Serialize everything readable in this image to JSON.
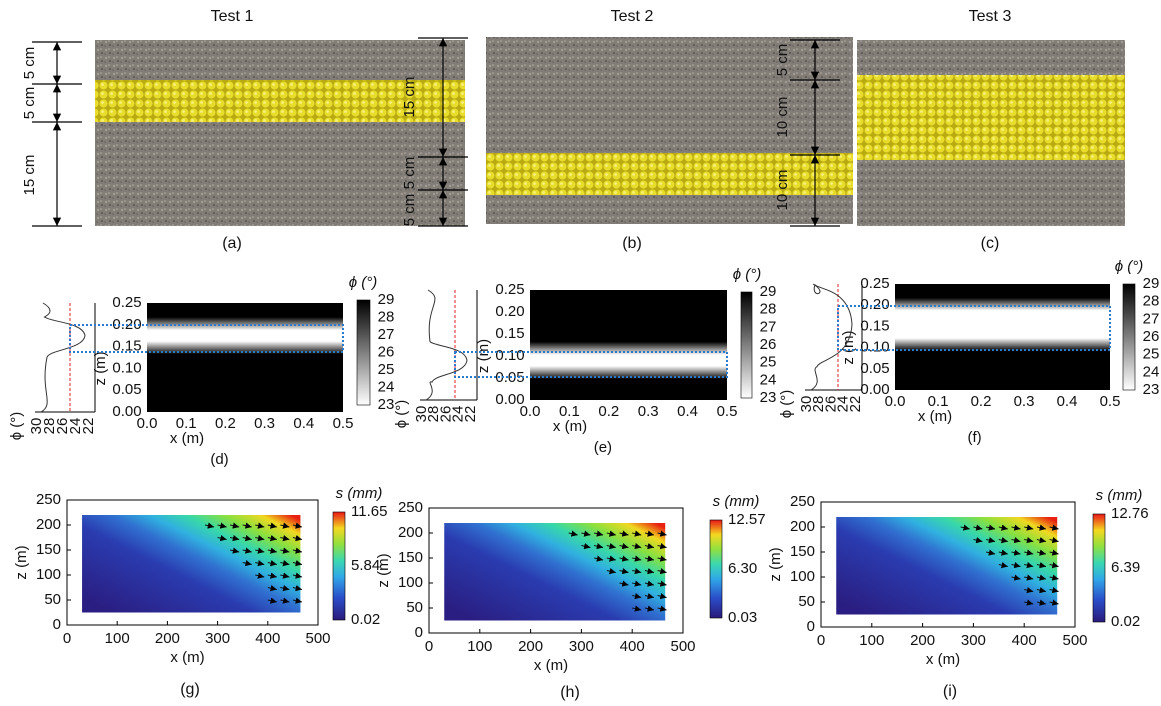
{
  "tests": [
    {
      "title": "Test 1",
      "dims": [
        "5 cm",
        "5 cm",
        "15 cm"
      ],
      "label": "(a)"
    },
    {
      "title": "Test 2",
      "dims": [
        "15 cm",
        "5 cm",
        "5 cm"
      ],
      "label": "(b)"
    },
    {
      "title": "Test 3",
      "dims": [
        "5 cm",
        "10 cm",
        "10 cm"
      ],
      "label": "(c)"
    }
  ],
  "phi_panels": [
    {
      "label": "(d)",
      "colorbar_title": "ϕ (°)",
      "colorbar_ticks": [
        "29",
        "28",
        "27",
        "26",
        "25",
        "24",
        "23"
      ],
      "z_label": "z (m)",
      "x_label": "x (m)",
      "z_ticks": [
        "0.25",
        "0.20",
        "0.15",
        "0.10",
        "0.05",
        "0.00"
      ],
      "x_ticks": [
        "0.0",
        "0.1",
        "0.2",
        "0.3",
        "0.4",
        "0.5"
      ],
      "profile_label": "ϕ (°)",
      "profile_ticks": [
        "30",
        "28",
        "26",
        "24",
        "22"
      ]
    },
    {
      "label": "(e)",
      "colorbar_title": "ϕ (°)",
      "colorbar_ticks": [
        "29",
        "28",
        "27",
        "26",
        "25",
        "24",
        "23"
      ],
      "z_label": "z (m)",
      "x_label": "x (m)",
      "z_ticks": [
        "0.25",
        "0.20",
        "0.15",
        "0.10",
        "0.05",
        "0.00"
      ],
      "x_ticks": [
        "0.0",
        "0.1",
        "0.2",
        "0.3",
        "0.4",
        "0.5"
      ],
      "profile_label": "ϕ (°)",
      "profile_ticks": [
        "30",
        "28",
        "26",
        "24",
        "22"
      ]
    },
    {
      "label": "(f)",
      "colorbar_title": "ϕ (°)",
      "colorbar_ticks": [
        "29",
        "28",
        "27",
        "26",
        "25",
        "24",
        "23"
      ],
      "z_label": "z (m)",
      "x_label": "x (m)",
      "z_ticks": [
        "0.25",
        "0.20",
        "0.15",
        "0.10",
        "0.05",
        "0.00"
      ],
      "x_ticks": [
        "0.0",
        "0.1",
        "0.2",
        "0.3",
        "0.4",
        "0.5"
      ],
      "profile_label": "ϕ (°)",
      "profile_ticks": [
        "30",
        "28",
        "26",
        "24",
        "22"
      ]
    }
  ],
  "disp_panels": [
    {
      "label": "(g)",
      "colorbar_title": "s (mm)",
      "colorbar_ticks": [
        "11.65",
        "5.84",
        "0.02"
      ],
      "x_label": "x (m)",
      "z_label": "z (m)",
      "x_ticks": [
        "0",
        "100",
        "200",
        "300",
        "400",
        "500"
      ],
      "z_ticks": [
        "250",
        "200",
        "150",
        "100",
        "50",
        "0"
      ]
    },
    {
      "label": "(h)",
      "colorbar_title": "s (mm)",
      "colorbar_ticks": [
        "12.57",
        "6.30",
        "0.03"
      ],
      "x_label": "x (m)",
      "z_label": "z (m)",
      "x_ticks": [
        "0",
        "100",
        "200",
        "300",
        "400",
        "500"
      ],
      "z_ticks": [
        "250",
        "200",
        "150",
        "100",
        "50",
        "0"
      ]
    },
    {
      "label": "(i)",
      "colorbar_title": "s (mm)",
      "colorbar_ticks": [
        "12.76",
        "6.39",
        "0.02"
      ],
      "x_label": "x (m)",
      "z_label": "z (m)",
      "x_ticks": [
        "0",
        "100",
        "200",
        "300",
        "400",
        "500"
      ],
      "z_ticks": [
        "250",
        "200",
        "150",
        "100",
        "50",
        "0"
      ]
    }
  ]
}
